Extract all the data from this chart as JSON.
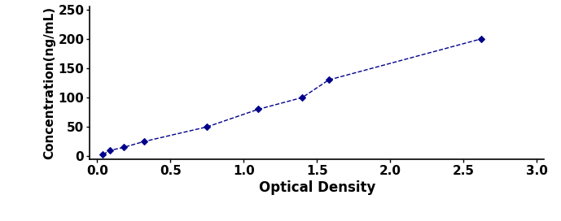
{
  "x": [
    0.04,
    0.09,
    0.18,
    0.32,
    0.75,
    1.1,
    1.4,
    1.58,
    2.62
  ],
  "y": [
    3,
    10,
    15,
    25,
    50,
    80,
    100,
    130,
    200
  ],
  "line_color": "#00008B",
  "marker_color": "#00008B",
  "marker_style": "D",
  "marker_size": 4,
  "line_style": "--",
  "line_width": 1.0,
  "xlabel": "Optical Density",
  "ylabel": "Concentration(ng/mL)",
  "xlim": [
    -0.05,
    3.05
  ],
  "ylim": [
    -5,
    255
  ],
  "xticks": [
    0,
    0.5,
    1,
    1.5,
    2,
    2.5,
    3
  ],
  "yticks": [
    0,
    50,
    100,
    150,
    200,
    250
  ],
  "xlabel_fontsize": 12,
  "ylabel_fontsize": 11,
  "tick_fontsize": 11,
  "xlabel_fontweight": "bold",
  "ylabel_fontweight": "bold",
  "tick_fontweight": "bold",
  "bg_color": "#ffffff",
  "fig_width": 6.89,
  "fig_height": 2.72
}
